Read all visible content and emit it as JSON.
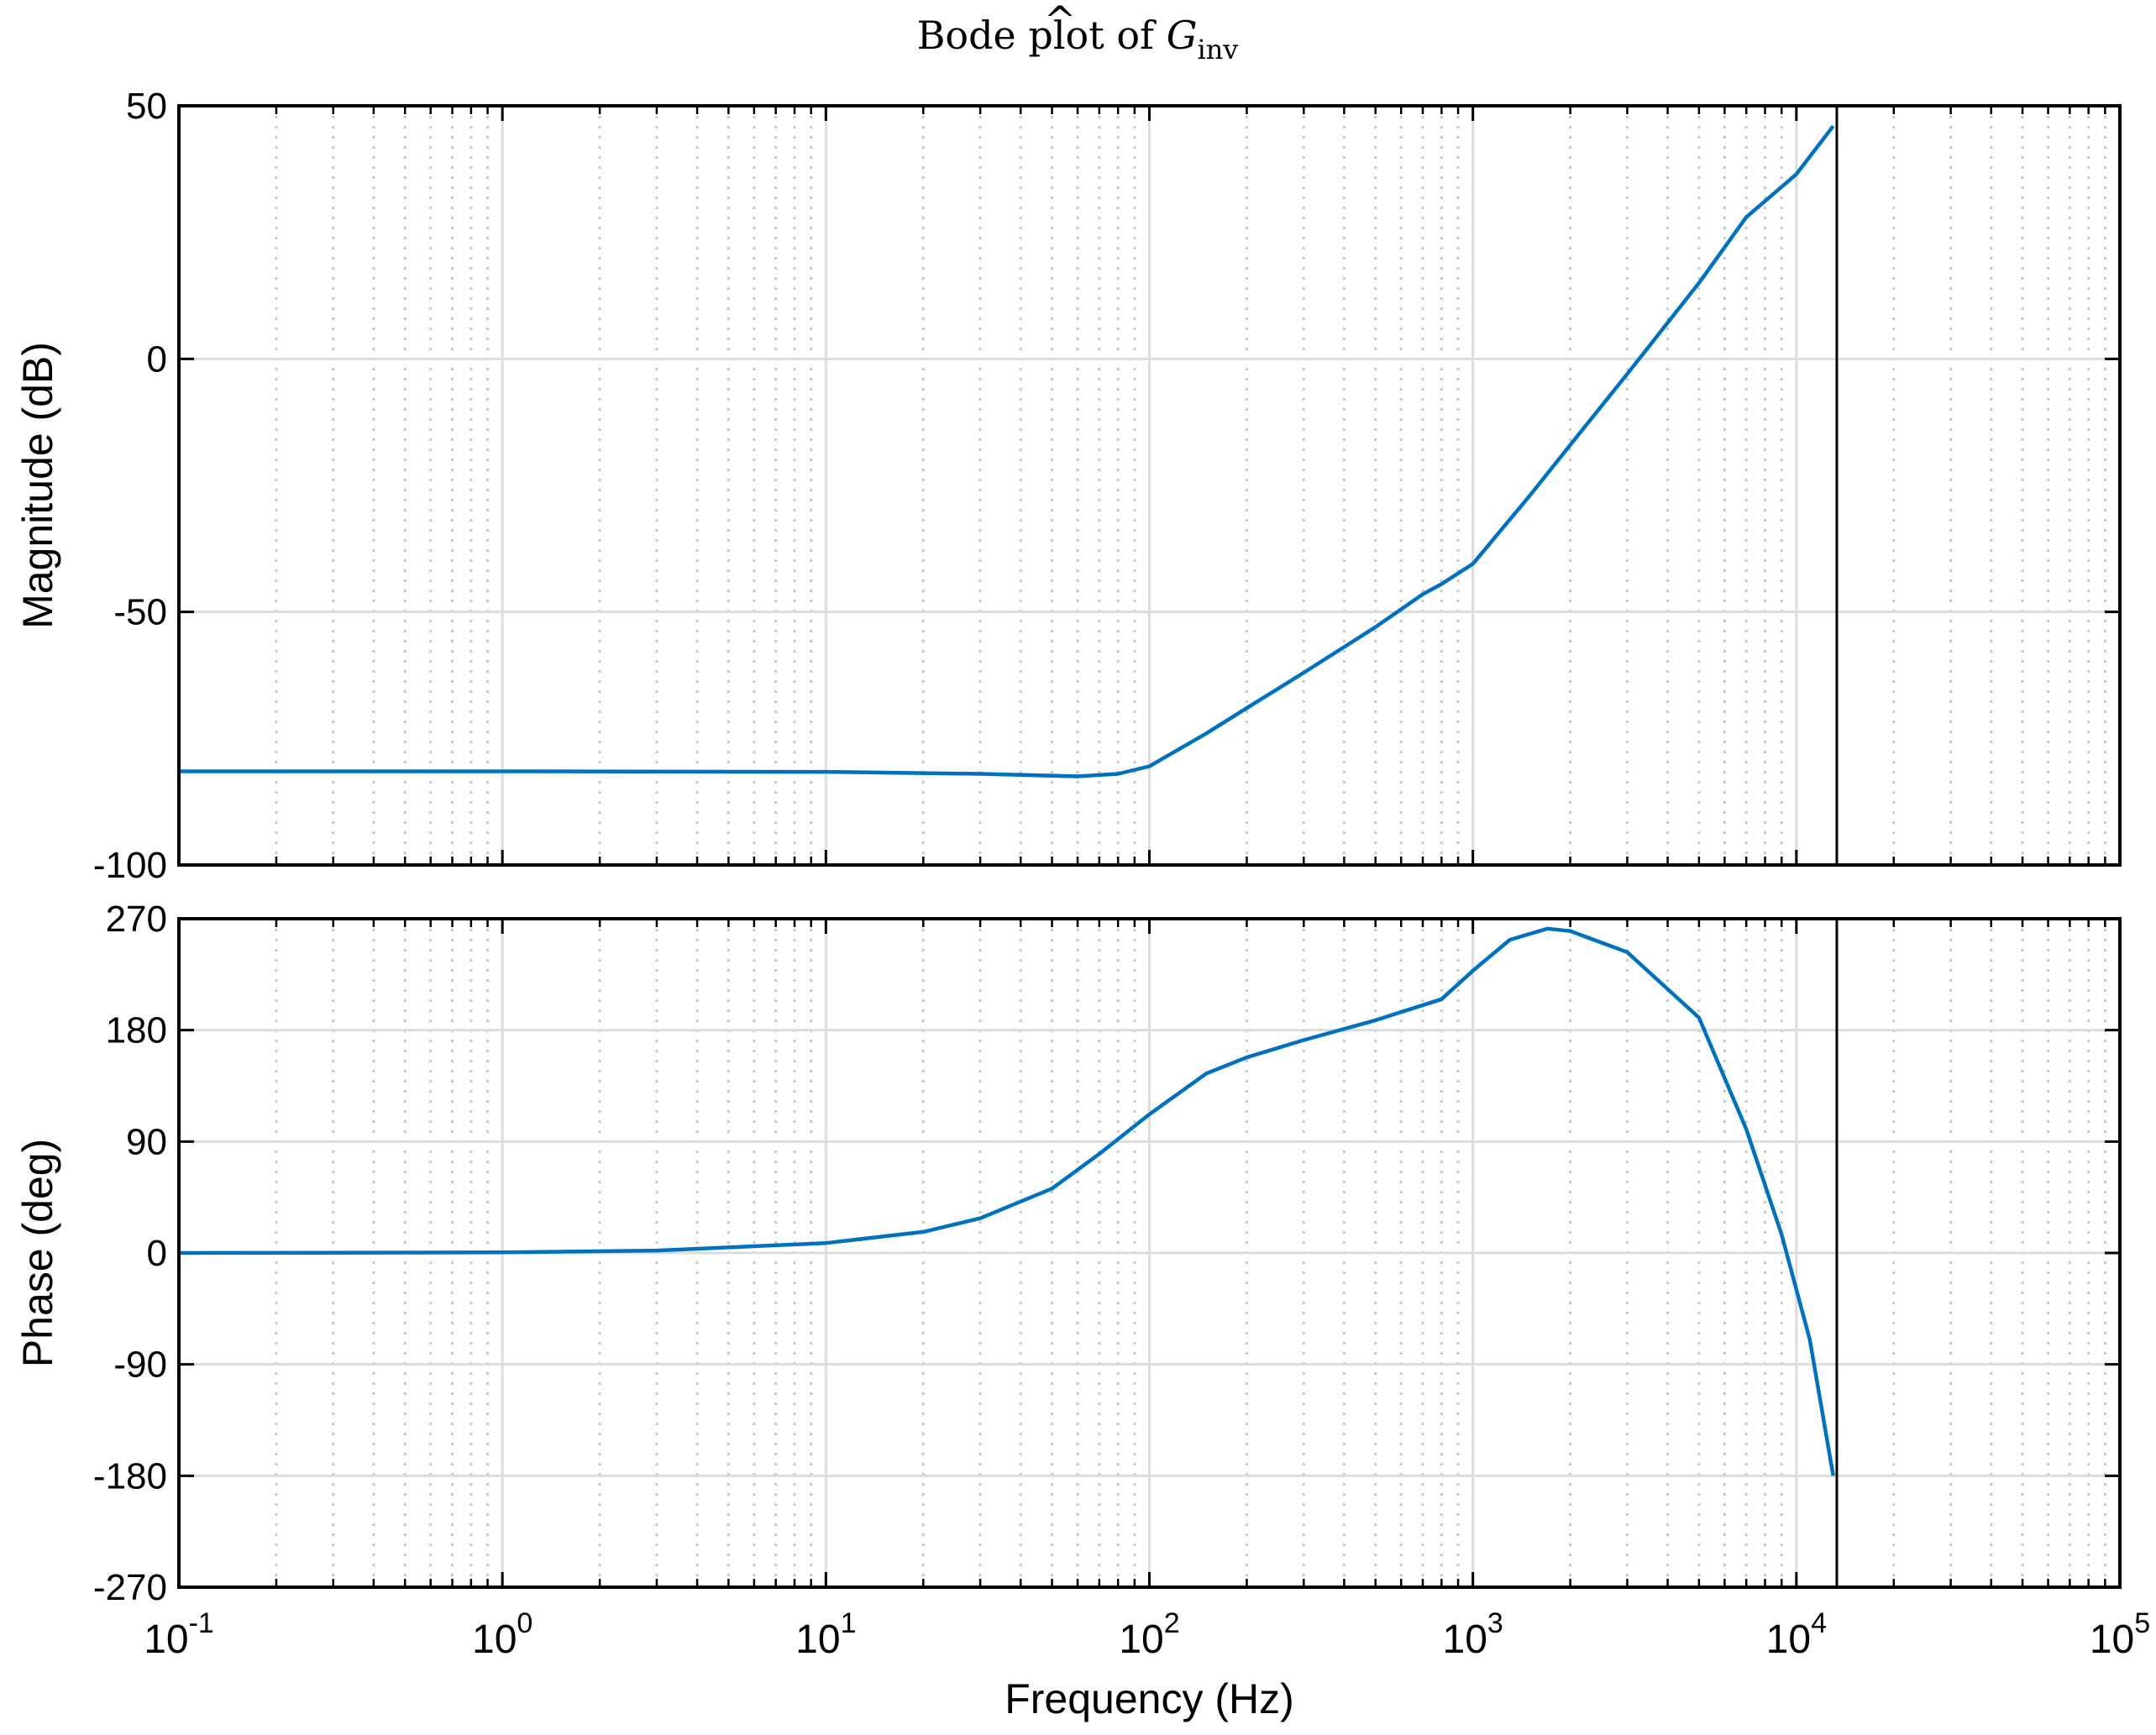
{
  "chart_data": [
    {
      "type": "line",
      "title": "Bode plot of Ĝinv",
      "title_parts": {
        "text": "Bode plot of ",
        "symbol": "G",
        "hat": "^",
        "subscript": "inv"
      },
      "xlabel": "Frequency  (Hz)",
      "ylabel": "Magnitude (dB)",
      "xscale": "log",
      "xlim": [
        0.1,
        100000
      ],
      "ylim": [
        -100,
        50
      ],
      "yticks": [
        50,
        0,
        -50,
        -100
      ],
      "ytick_labels": [
        "50",
        "0",
        "-50",
        "-100"
      ],
      "grid": true,
      "vline": 13333,
      "line_color": "#0072BD",
      "x": [
        0.1,
        1,
        10,
        30,
        60,
        80,
        100,
        150,
        200,
        300,
        500,
        700,
        800,
        1000,
        1500,
        2000,
        3000,
        5000,
        7000,
        10000,
        13000
      ],
      "y": [
        -81.5,
        -81.5,
        -81.6,
        -82,
        -82.5,
        -82,
        -80.5,
        -74,
        -69,
        -62,
        -53,
        -46.5,
        -44.5,
        -40.5,
        -27,
        -17,
        -3,
        15,
        28,
        36.5,
        46
      ]
    },
    {
      "type": "line",
      "xlabel": "Frequency  (Hz)",
      "ylabel": "Phase (deg)",
      "xscale": "log",
      "xlim": [
        0.1,
        100000
      ],
      "ylim": [
        -270,
        270
      ],
      "yticks": [
        270,
        180,
        90,
        0,
        -90,
        -180,
        -270
      ],
      "ytick_labels": [
        "270",
        "180",
        "90",
        "0",
        "-90",
        "-180",
        "-270"
      ],
      "xticks": [
        0.1,
        1,
        10,
        100,
        1000,
        10000,
        100000
      ],
      "xtick_base": "10",
      "xtick_exponents": [
        "-1",
        "0",
        "1",
        "2",
        "3",
        "4",
        "5"
      ],
      "grid": true,
      "vline": 13333,
      "line_color": "#0072BD",
      "x": [
        0.1,
        1,
        3,
        10,
        20,
        30,
        50,
        70,
        100,
        150,
        200,
        300,
        500,
        800,
        1000,
        1300,
        1700,
        2000,
        3000,
        5000,
        7000,
        9000,
        11000,
        13000
      ],
      "y": [
        0,
        0.5,
        2,
        8,
        17,
        28,
        52,
        80,
        112,
        145,
        158,
        172,
        188,
        205,
        228,
        253,
        262,
        260,
        243,
        190,
        100,
        15,
        -70,
        -180
      ]
    }
  ]
}
